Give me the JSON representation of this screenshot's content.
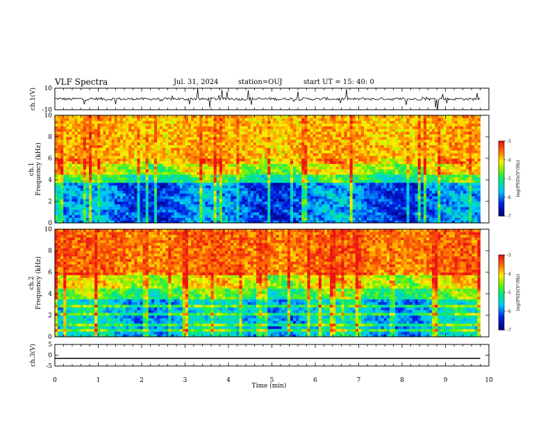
{
  "header": {
    "title": "VLF Spectra",
    "date": "Jul. 31, 2024",
    "station": "station=OUJ",
    "start": "start  UT =  15: 40: 0"
  },
  "chart_data": [
    {
      "type": "line",
      "panel": "ch1-waveform",
      "ylabel": "ch.1(V)",
      "ylim": [
        -10,
        10
      ],
      "yticks": [
        "10",
        "-10"
      ],
      "x": [
        0,
        0.5,
        1,
        1.5,
        2,
        2.5,
        3,
        3.5,
        4,
        4.5,
        5,
        5.5,
        6,
        6.5,
        7,
        7.5,
        8,
        8.5,
        9,
        9.5,
        9.8
      ],
      "values": [
        0,
        1,
        -1,
        2,
        -2,
        1,
        0,
        -1,
        2,
        -1,
        0,
        1,
        -2,
        0,
        1,
        -1,
        2,
        0,
        -1,
        1,
        0
      ],
      "color": "#000000"
    },
    {
      "type": "heatmap",
      "panel": "ch1-spectrogram",
      "ylabel": "ch.1\nFrequency (kHz)",
      "ylim": [
        0,
        10
      ],
      "yticks": [
        "0",
        "2",
        "4",
        "6",
        "8",
        "10"
      ],
      "xlim": [
        0,
        10
      ],
      "colorbar": {
        "label": "log(PSD)(V²/Hz)",
        "range": [
          -7,
          -3
        ],
        "ticks": [
          "-3",
          "-4",
          "-5",
          "-6",
          "-7"
        ]
      },
      "bands": [
        {
          "from": 0,
          "to": 3.8,
          "level": -6.0
        },
        {
          "from": 3.8,
          "to": 4.6,
          "level": -5.0
        },
        {
          "from": 4.6,
          "to": 5.6,
          "level": -4.3
        },
        {
          "from": 5.6,
          "to": 10,
          "level": -3.8
        }
      ]
    },
    {
      "type": "heatmap",
      "panel": "ch2-spectrogram",
      "ylabel": "ch.2\nFrequency (kHz)",
      "ylim": [
        0,
        10
      ],
      "yticks": [
        "0",
        "2",
        "4",
        "6",
        "8",
        "10"
      ],
      "xlim": [
        0,
        10
      ],
      "colorbar": {
        "label": "log(PSD)(V²/Hz)",
        "range": [
          -7,
          -3
        ],
        "ticks": [
          "-3",
          "-4",
          "-5",
          "-6",
          "-7"
        ]
      },
      "bands": [
        {
          "from": 0,
          "to": 3.4,
          "level": -5.6
        },
        {
          "from": 3.4,
          "to": 4.6,
          "level": -4.8
        },
        {
          "from": 4.6,
          "to": 5.8,
          "level": -4.2
        },
        {
          "from": 5.8,
          "to": 10,
          "level": -3.5
        }
      ]
    },
    {
      "type": "line",
      "panel": "ch3-waveform",
      "ylabel": "ch.3(V)",
      "ylim": [
        -5,
        5
      ],
      "yticks": [
        "5",
        "0",
        "-5"
      ],
      "x": [
        0,
        9.8
      ],
      "values": [
        -1.5,
        -1.5
      ],
      "color": "#000000"
    }
  ],
  "xaxis": {
    "label": "Time  (min)",
    "range": [
      0,
      10
    ],
    "ticks": [
      "0",
      "1",
      "2",
      "3",
      "4",
      "5",
      "6",
      "7",
      "8",
      "9",
      "10"
    ]
  }
}
